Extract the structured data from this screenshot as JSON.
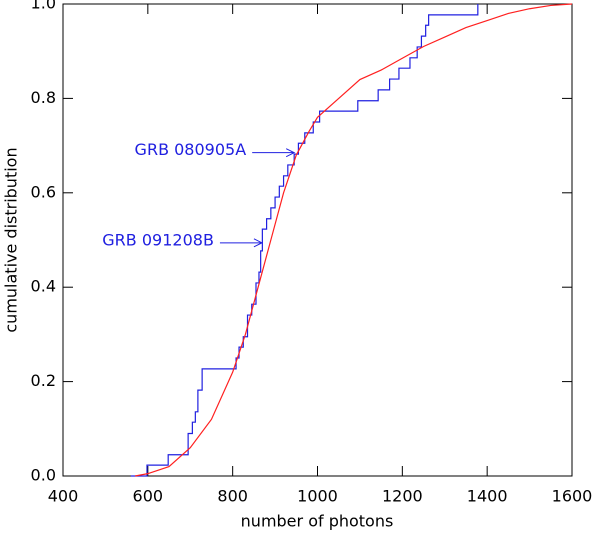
{
  "chart_data": {
    "type": "line",
    "xlabel": "number of photons",
    "ylabel": "cumulative distribution",
    "xlim": [
      400,
      1600
    ],
    "ylim": [
      0,
      1
    ],
    "xticks": [
      400,
      600,
      800,
      1000,
      1200,
      1400,
      1600
    ],
    "yticks": [
      {
        "value": 0,
        "label": "0.0"
      },
      0.2,
      0.4,
      0.6,
      0.8,
      {
        "value": 1,
        "label": "1.0"
      }
    ],
    "series": [
      {
        "color": "#2020e0",
        "x": [
          560,
          598,
          598,
          648,
          648,
          695,
          695,
          705,
          705,
          712,
          712,
          718,
          718,
          728,
          728,
          808,
          808,
          815,
          815,
          825,
          825,
          835,
          835,
          845,
          845,
          855,
          855,
          862,
          862,
          866,
          866,
          870,
          870,
          880,
          880,
          890,
          890,
          900,
          900,
          910,
          910,
          920,
          920,
          930,
          930,
          945,
          945,
          955,
          955,
          970,
          970,
          990,
          990,
          1005,
          1005,
          1095,
          1095,
          1143,
          1143,
          1170,
          1170,
          1192,
          1192,
          1218,
          1218,
          1235,
          1235,
          1245,
          1245,
          1255,
          1255,
          1262,
          1262,
          1378,
          1378
        ],
        "values": [
          0,
          0,
          0.023,
          0.023,
          0.045,
          0.045,
          0.09,
          0.09,
          0.114,
          0.114,
          0.136,
          0.136,
          0.182,
          0.182,
          0.227,
          0.227,
          0.25,
          0.25,
          0.273,
          0.273,
          0.295,
          0.295,
          0.341,
          0.341,
          0.364,
          0.364,
          0.409,
          0.409,
          0.432,
          0.432,
          0.477,
          0.477,
          0.523,
          0.523,
          0.545,
          0.545,
          0.568,
          0.568,
          0.591,
          0.591,
          0.614,
          0.614,
          0.636,
          0.636,
          0.659,
          0.659,
          0.682,
          0.682,
          0.705,
          0.705,
          0.727,
          0.727,
          0.75,
          0.75,
          0.773,
          0.773,
          0.795,
          0.795,
          0.818,
          0.818,
          0.841,
          0.841,
          0.864,
          0.864,
          0.886,
          0.886,
          0.909,
          0.909,
          0.932,
          0.932,
          0.955,
          0.955,
          0.977,
          0.977,
          1.0
        ]
      },
      {
        "color": "#ff2020",
        "x": [
          570,
          600,
          650,
          700,
          750,
          800,
          830,
          860,
          890,
          920,
          950,
          980,
          1000,
          1050,
          1100,
          1150,
          1200,
          1250,
          1300,
          1350,
          1400,
          1450,
          1500,
          1550,
          1600
        ],
        "values": [
          0,
          0.005,
          0.02,
          0.06,
          0.12,
          0.22,
          0.3,
          0.4,
          0.5,
          0.6,
          0.68,
          0.73,
          0.76,
          0.8,
          0.84,
          0.86,
          0.885,
          0.91,
          0.93,
          0.95,
          0.965,
          0.98,
          0.99,
          0.997,
          1.0
        ]
      }
    ],
    "annotations": [
      {
        "text": "GRB 080905A",
        "x": 945,
        "y": 0.685,
        "color": "#2020e0"
      },
      {
        "text": "GRB 091208B",
        "x": 869,
        "y": 0.494,
        "color": "#2020e0"
      }
    ]
  }
}
